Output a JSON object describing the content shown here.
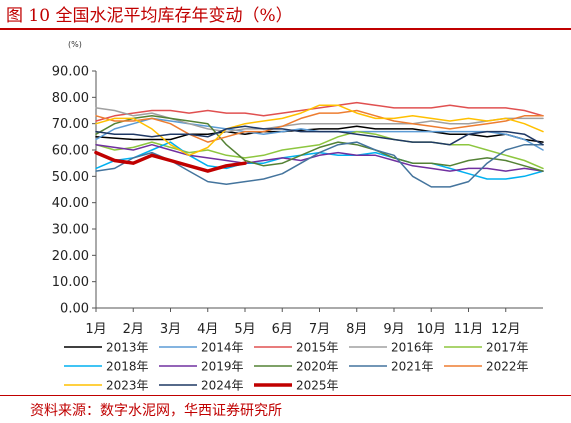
{
  "title": "图 10 全国水泥平均库存年变动（%）",
  "source": "资料来源：数字水泥网，华西证券研究所",
  "colors": {
    "accent": "#c00000"
  },
  "chart_data": {
    "type": "line",
    "title": "图 10 全国水泥平均库存年变动（%）",
    "ylabel": "(%)",
    "xlabel": "",
    "ylim": [
      0,
      90
    ],
    "yticks": [
      "0.00",
      "10.00",
      "20.00",
      "30.00",
      "40.00",
      "50.00",
      "60.00",
      "70.00",
      "80.00",
      "90.00"
    ],
    "categories": [
      "1月",
      "2月",
      "3月",
      "4月",
      "5月",
      "6月",
      "7月",
      "8月",
      "9月",
      "10月",
      "11月",
      "12月"
    ],
    "grid": false,
    "legend_position": "bottom",
    "series": [
      {
        "name": "2013年",
        "color": "#000000",
        "width": 1.5,
        "points": [
          [
            1,
            65
          ],
          [
            2,
            64
          ],
          [
            3,
            64
          ],
          [
            3.5,
            66
          ],
          [
            4,
            66
          ],
          [
            4.5,
            67
          ],
          [
            5,
            66
          ],
          [
            5.5,
            67
          ],
          [
            6,
            67
          ],
          [
            6.5,
            67.5
          ],
          [
            7,
            68
          ],
          [
            7.5,
            68
          ],
          [
            8,
            69
          ],
          [
            8.5,
            68
          ],
          [
            9,
            68
          ],
          [
            9.5,
            68
          ],
          [
            10,
            67
          ],
          [
            10.5,
            66
          ],
          [
            11,
            66
          ],
          [
            11.5,
            65
          ],
          [
            12,
            66
          ],
          [
            12.5,
            64
          ],
          [
            13,
            63
          ]
        ]
      },
      {
        "name": "2014年",
        "color": "#5b9bd5",
        "width": 1.5,
        "points": [
          [
            1,
            64
          ],
          [
            1.5,
            68
          ],
          [
            2,
            70
          ],
          [
            2.5,
            72
          ],
          [
            3,
            71
          ],
          [
            3.5,
            70
          ],
          [
            4,
            69
          ],
          [
            4.5,
            68
          ],
          [
            5,
            67
          ],
          [
            5.5,
            66
          ],
          [
            6,
            67
          ],
          [
            6.5,
            68
          ],
          [
            7,
            67
          ],
          [
            7.5,
            67
          ],
          [
            8,
            67
          ],
          [
            8.5,
            67
          ],
          [
            9,
            67
          ],
          [
            9.5,
            67
          ],
          [
            10,
            67
          ],
          [
            10.5,
            67
          ],
          [
            11,
            67
          ],
          [
            11.5,
            67
          ],
          [
            12,
            66
          ],
          [
            12.5,
            64
          ],
          [
            13,
            60
          ]
        ]
      },
      {
        "name": "2015年",
        "color": "#e05050",
        "width": 1.5,
        "points": [
          [
            1,
            71
          ],
          [
            1.5,
            73
          ],
          [
            2,
            74
          ],
          [
            2.5,
            75
          ],
          [
            3,
            75
          ],
          [
            3.5,
            74
          ],
          [
            4,
            75
          ],
          [
            4.5,
            74
          ],
          [
            5,
            74
          ],
          [
            5.5,
            73
          ],
          [
            6,
            74
          ],
          [
            6.5,
            75
          ],
          [
            7,
            76
          ],
          [
            7.5,
            77
          ],
          [
            8,
            78
          ],
          [
            8.5,
            77
          ],
          [
            9,
            76
          ],
          [
            9.5,
            76
          ],
          [
            10,
            76
          ],
          [
            10.5,
            77
          ],
          [
            11,
            76
          ],
          [
            11.5,
            76
          ],
          [
            12,
            76
          ],
          [
            12.5,
            75
          ],
          [
            13,
            73
          ]
        ]
      },
      {
        "name": "2016年",
        "color": "#a0a0a0",
        "width": 1.5,
        "points": [
          [
            1,
            76
          ],
          [
            1.5,
            75
          ],
          [
            2,
            73
          ],
          [
            2.5,
            74
          ],
          [
            3,
            72
          ],
          [
            3.5,
            70
          ],
          [
            4,
            68
          ],
          [
            4.5,
            67
          ],
          [
            5,
            68
          ],
          [
            5.5,
            68
          ],
          [
            6,
            69
          ],
          [
            6.5,
            70
          ],
          [
            7,
            70
          ],
          [
            7.5,
            70
          ],
          [
            8,
            70
          ],
          [
            8.5,
            70
          ],
          [
            9,
            70
          ],
          [
            9.5,
            70
          ],
          [
            10,
            71
          ],
          [
            10.5,
            70
          ],
          [
            11,
            70
          ],
          [
            11.5,
            71
          ],
          [
            12,
            72
          ],
          [
            12.5,
            72
          ],
          [
            13,
            72
          ]
        ]
      },
      {
        "name": "2017年",
        "color": "#8dc63f",
        "width": 1.5,
        "points": [
          [
            1,
            62
          ],
          [
            1.5,
            60
          ],
          [
            2,
            61
          ],
          [
            2.5,
            63
          ],
          [
            3,
            61
          ],
          [
            3.5,
            59
          ],
          [
            4,
            60
          ],
          [
            4.5,
            58
          ],
          [
            5,
            57
          ],
          [
            5.5,
            58
          ],
          [
            6,
            60
          ],
          [
            6.5,
            61
          ],
          [
            7,
            62
          ],
          [
            7.5,
            65
          ],
          [
            8,
            67
          ],
          [
            8.5,
            66
          ],
          [
            9,
            64
          ],
          [
            9.5,
            63
          ],
          [
            10,
            63
          ],
          [
            10.5,
            62
          ],
          [
            11,
            62
          ],
          [
            11.5,
            60
          ],
          [
            12,
            58
          ],
          [
            12.5,
            56
          ],
          [
            13,
            53
          ]
        ]
      },
      {
        "name": "2018年",
        "color": "#00b0f0",
        "width": 1.5,
        "points": [
          [
            1,
            53
          ],
          [
            1.5,
            56
          ],
          [
            2,
            57
          ],
          [
            2.5,
            60
          ],
          [
            3,
            63
          ],
          [
            3.5,
            58
          ],
          [
            4,
            54
          ],
          [
            4.5,
            53
          ],
          [
            5,
            55
          ],
          [
            5.5,
            55
          ],
          [
            6,
            57
          ],
          [
            6.5,
            58
          ],
          [
            7,
            59
          ],
          [
            7.5,
            58
          ],
          [
            8,
            58
          ],
          [
            8.5,
            59
          ],
          [
            9,
            57
          ],
          [
            9.5,
            55
          ],
          [
            10,
            55
          ],
          [
            10.5,
            53
          ],
          [
            11,
            51
          ],
          [
            11.5,
            49
          ],
          [
            12,
            49
          ],
          [
            12.5,
            50
          ],
          [
            13,
            52
          ]
        ]
      },
      {
        "name": "2019年",
        "color": "#7030a0",
        "width": 1.5,
        "points": [
          [
            1,
            62
          ],
          [
            1.5,
            61
          ],
          [
            2,
            60
          ],
          [
            2.5,
            62
          ],
          [
            3,
            60
          ],
          [
            3.5,
            58
          ],
          [
            4,
            57
          ],
          [
            4.5,
            56
          ],
          [
            5,
            55
          ],
          [
            5.5,
            56
          ],
          [
            6,
            57
          ],
          [
            6.5,
            56
          ],
          [
            7,
            58
          ],
          [
            7.5,
            59
          ],
          [
            8,
            58
          ],
          [
            8.5,
            58
          ],
          [
            9,
            56
          ],
          [
            9.5,
            54
          ],
          [
            10,
            53
          ],
          [
            10.5,
            52
          ],
          [
            11,
            53
          ],
          [
            11.5,
            53
          ],
          [
            12,
            52
          ],
          [
            12.5,
            53
          ],
          [
            13,
            52
          ]
        ]
      },
      {
        "name": "2020年",
        "color": "#548235",
        "width": 1.5,
        "points": [
          [
            1,
            66
          ],
          [
            1.5,
            70
          ],
          [
            2,
            72
          ],
          [
            2.5,
            73
          ],
          [
            3,
            72
          ],
          [
            3.5,
            71
          ],
          [
            4,
            70
          ],
          [
            4.5,
            62
          ],
          [
            5,
            56
          ],
          [
            5.5,
            54
          ],
          [
            6,
            55
          ],
          [
            6.5,
            58
          ],
          [
            7,
            61
          ],
          [
            7.5,
            63
          ],
          [
            8,
            62
          ],
          [
            8.5,
            60
          ],
          [
            9,
            57
          ],
          [
            9.5,
            55
          ],
          [
            10,
            55
          ],
          [
            10.5,
            54
          ],
          [
            11,
            56
          ],
          [
            11.5,
            57
          ],
          [
            12,
            56
          ],
          [
            12.5,
            54
          ],
          [
            13,
            52
          ]
        ]
      },
      {
        "name": "2021年",
        "color": "#44749d",
        "width": 1.5,
        "points": [
          [
            1,
            52
          ],
          [
            1.5,
            53
          ],
          [
            2,
            57
          ],
          [
            2.5,
            59
          ],
          [
            3,
            56
          ],
          [
            3.5,
            52
          ],
          [
            4,
            48
          ],
          [
            4.5,
            47
          ],
          [
            5,
            48
          ],
          [
            5.5,
            49
          ],
          [
            6,
            51
          ],
          [
            6.5,
            55
          ],
          [
            7,
            59
          ],
          [
            7.5,
            62
          ],
          [
            8,
            63
          ],
          [
            8.5,
            60
          ],
          [
            9,
            58
          ],
          [
            9.5,
            50
          ],
          [
            10,
            46
          ],
          [
            10.5,
            46
          ],
          [
            11,
            48
          ],
          [
            11.5,
            55
          ],
          [
            12,
            60
          ],
          [
            12.5,
            62
          ],
          [
            13,
            62
          ]
        ]
      },
      {
        "name": "2022年",
        "color": "#ed7d31",
        "width": 1.5,
        "points": [
          [
            1,
            73
          ],
          [
            1.5,
            71
          ],
          [
            2,
            71
          ],
          [
            2.5,
            72
          ],
          [
            3,
            70
          ],
          [
            3.5,
            66
          ],
          [
            4,
            63
          ],
          [
            4.5,
            65
          ],
          [
            5,
            67
          ],
          [
            5.5,
            67
          ],
          [
            6,
            69
          ],
          [
            6.5,
            72
          ],
          [
            7,
            74
          ],
          [
            7.5,
            74
          ],
          [
            8,
            75
          ],
          [
            8.5,
            73
          ],
          [
            9,
            71
          ],
          [
            9.5,
            70
          ],
          [
            10,
            69
          ],
          [
            10.5,
            68
          ],
          [
            11,
            69
          ],
          [
            11.5,
            70
          ],
          [
            12,
            71
          ],
          [
            12.5,
            73
          ],
          [
            13,
            73
          ]
        ]
      },
      {
        "name": "2023年",
        "color": "#ffc000",
        "width": 1.5,
        "points": [
          [
            1,
            70
          ],
          [
            1.5,
            72
          ],
          [
            2,
            72
          ],
          [
            2.5,
            68
          ],
          [
            3,
            62
          ],
          [
            3.5,
            58
          ],
          [
            4,
            61
          ],
          [
            4.5,
            68
          ],
          [
            5,
            70
          ],
          [
            5.5,
            71
          ],
          [
            6,
            72
          ],
          [
            6.5,
            74
          ],
          [
            7,
            77
          ],
          [
            7.5,
            77
          ],
          [
            8,
            74
          ],
          [
            8.5,
            72
          ],
          [
            9,
            72
          ],
          [
            9.5,
            73
          ],
          [
            10,
            72
          ],
          [
            10.5,
            71
          ],
          [
            11,
            72
          ],
          [
            11.5,
            71
          ],
          [
            12,
            72
          ],
          [
            12.5,
            70
          ],
          [
            13,
            67
          ]
        ]
      },
      {
        "name": "2024年",
        "color": "#1f3864",
        "width": 1.5,
        "points": [
          [
            1,
            67
          ],
          [
            1.5,
            66
          ],
          [
            2,
            66
          ],
          [
            2.5,
            65
          ],
          [
            3,
            66
          ],
          [
            3.5,
            66
          ],
          [
            4,
            65
          ],
          [
            4.5,
            68
          ],
          [
            5,
            69
          ],
          [
            5.5,
            68
          ],
          [
            6,
            68
          ],
          [
            6.5,
            67
          ],
          [
            7,
            67
          ],
          [
            7.5,
            67
          ],
          [
            8,
            66
          ],
          [
            8.5,
            65
          ],
          [
            9,
            64
          ],
          [
            9.5,
            63
          ],
          [
            10,
            63
          ],
          [
            10.5,
            62
          ],
          [
            11,
            66
          ],
          [
            11.5,
            67
          ],
          [
            12,
            67
          ],
          [
            12.5,
            66
          ],
          [
            13,
            62
          ]
        ]
      },
      {
        "name": "2025年",
        "color": "#c00000",
        "width": 3.5,
        "points": [
          [
            1,
            59
          ],
          [
            1.5,
            56
          ],
          [
            2,
            55
          ],
          [
            2.5,
            58
          ],
          [
            3,
            56
          ],
          [
            3.5,
            54
          ],
          [
            4,
            52
          ],
          [
            4.5,
            54
          ],
          [
            5,
            55
          ]
        ]
      }
    ]
  }
}
